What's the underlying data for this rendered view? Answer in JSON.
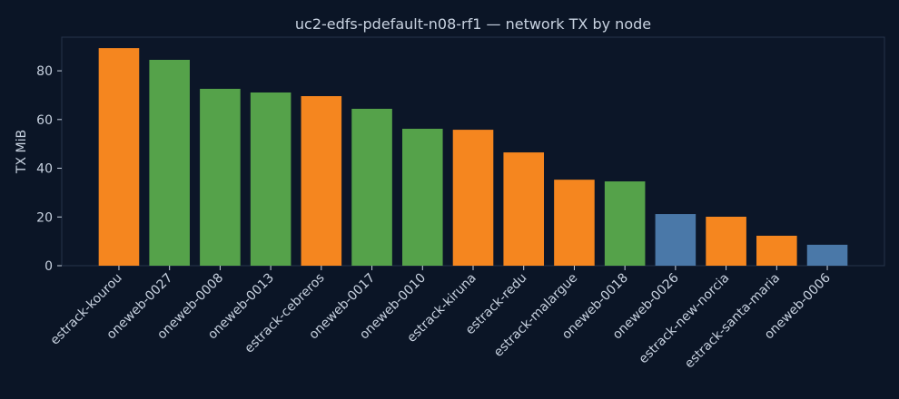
{
  "chart_data": {
    "type": "bar",
    "title": "uc2-edfs-pdefault-n08-rf1 — network TX by node",
    "y_label": "TX MiB",
    "categories": [
      "estrack-kourou",
      "oneweb-0027",
      "oneweb-0008",
      "oneweb-0013",
      "estrack-cebreros",
      "oneweb-0017",
      "oneweb-0010",
      "estrack-kiruna",
      "estrack-redu",
      "estrack-malargue",
      "oneweb-0018",
      "oneweb-0026",
      "estrack-new-norcia",
      "estrack-santa-maria",
      "oneweb-0006"
    ],
    "values": [
      89.3,
      84.5,
      72.6,
      71.1,
      69.6,
      64.4,
      56.2,
      55.8,
      46.5,
      35.3,
      34.6,
      21.2,
      20.1,
      12.3,
      8.6
    ],
    "colors": [
      "#f5861f",
      "#55a24a",
      "#55a24a",
      "#55a24a",
      "#f5861f",
      "#55a24a",
      "#55a24a",
      "#f5861f",
      "#f5861f",
      "#f5861f",
      "#55a24a",
      "#4a78a8",
      "#f5861f",
      "#f5861f",
      "#4a78a8"
    ],
    "ylim": [
      0,
      93.8
    ],
    "yticks": [
      0,
      20,
      40,
      60,
      80
    ],
    "grid": false
  }
}
